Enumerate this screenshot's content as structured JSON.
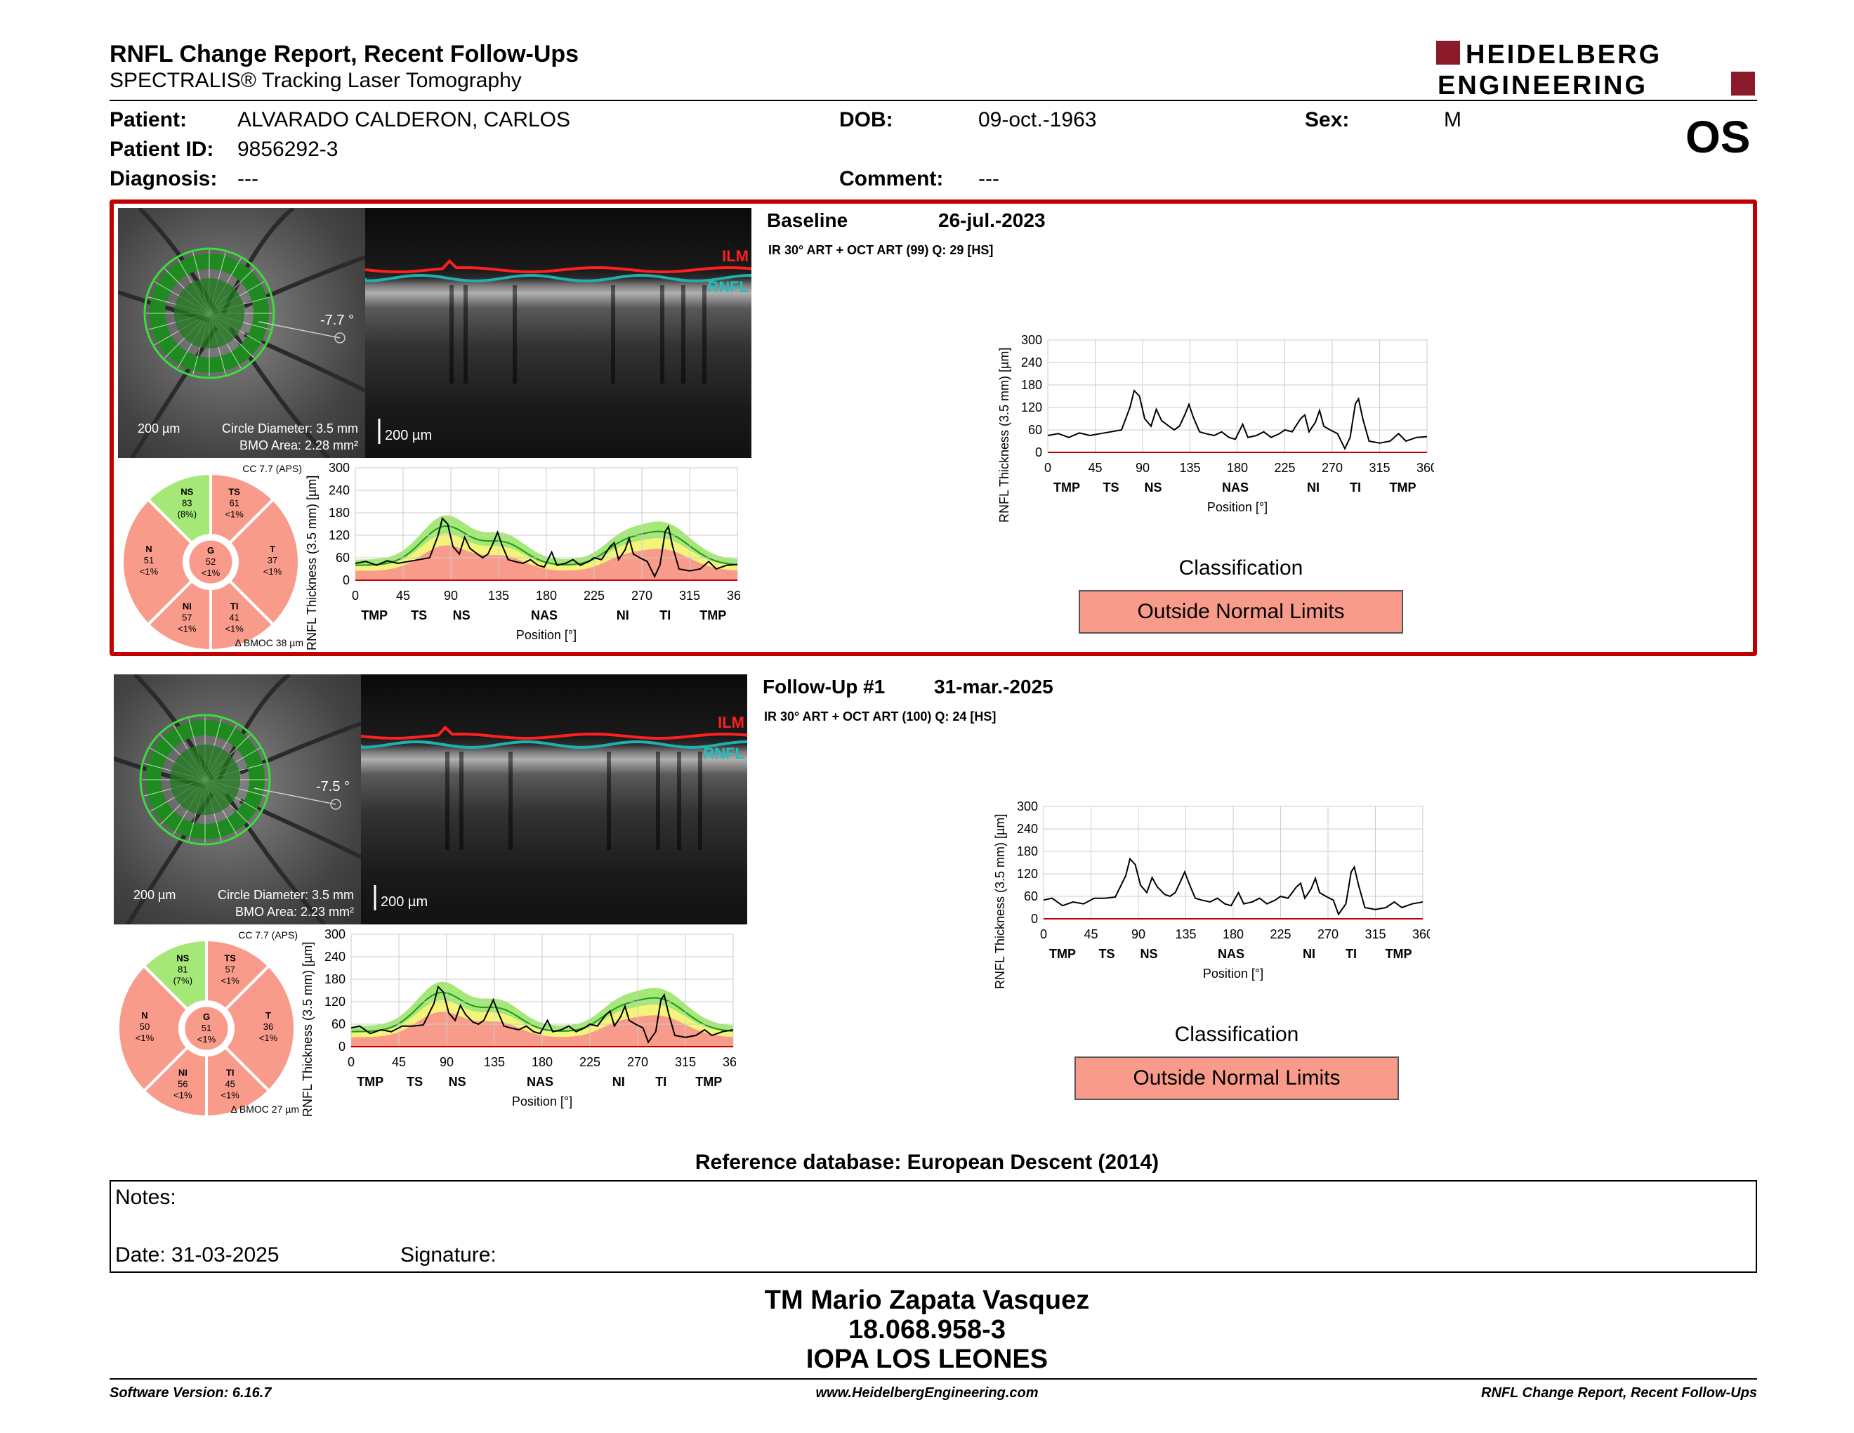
{
  "header": {
    "title": "RNFL Change Report, Recent Follow-Ups",
    "subtitle": "SPECTRALIS® Tracking Laser Tomography",
    "logo_line1": "HEIDELBERG",
    "logo_line2": "ENGINEERING"
  },
  "patient": {
    "patient_label": "Patient:",
    "patient_name": "ALVARADO CALDERON, CARLOS",
    "dob_label": "DOB:",
    "dob": "09-oct.-1963",
    "sex_label": "Sex:",
    "sex": "M",
    "id_label": "Patient ID:",
    "id": "9856292-3",
    "diagnosis_label": "Diagnosis:",
    "diagnosis": "---",
    "comment_label": "Comment:",
    "comment": "---",
    "eye": "OS"
  },
  "colors": {
    "red": "#c00000",
    "normal_green": "#a6e878",
    "borderline_yellow": "#f4f47a",
    "outside_red": "#f99b8b",
    "ilm": "#ff2020",
    "rnfl": "#20b0b0"
  },
  "exams": [
    {
      "name": "Baseline",
      "date": "26-jul.-2023",
      "scan": "IR 30° ART + OCT ART (99) Q: 29 [HS]",
      "angle": "-7.7 °",
      "fundus_scale": "200 µm",
      "circle_diameter": "Circle Diameter: 3.5 mm",
      "bmo_area": "BMO Area: 2.28 mm²",
      "oct_scale": "200 µm",
      "ilm": "ILM",
      "rnfl": "RNFL",
      "cc": "CC 7.7 (APS)",
      "bmoc": "Δ BMOC 38 µm",
      "sectors": {
        "NS": {
          "v": "83",
          "p": "(8%)",
          "c": "green"
        },
        "TS": {
          "v": "61",
          "p": "<1%",
          "c": "red"
        },
        "T": {
          "v": "37",
          "p": "<1%",
          "c": "red"
        },
        "TI": {
          "v": "41",
          "p": "<1%",
          "c": "red"
        },
        "NI": {
          "v": "57",
          "p": "<1%",
          "c": "red"
        },
        "N": {
          "v": "51",
          "p": "<1%",
          "c": "red"
        },
        "G": {
          "v": "52",
          "p": "<1%",
          "c": "red"
        }
      },
      "classification_label": "Classification",
      "classification": "Outside Normal Limits"
    },
    {
      "name": "Follow-Up #1",
      "date": "31-mar.-2025",
      "scan": "IR 30° ART + OCT ART (100) Q: 24 [HS]",
      "angle": "-7.5 °",
      "fundus_scale": "200 µm",
      "circle_diameter": "Circle Diameter: 3.5 mm",
      "bmo_area": "BMO Area: 2.23 mm²",
      "oct_scale": "200 µm",
      "ilm": "ILM",
      "rnfl": "RNFL",
      "cc": "CC 7.7 (APS)",
      "bmoc": "Δ BMOC 27 µm",
      "sectors": {
        "NS": {
          "v": "81",
          "p": "(7%)",
          "c": "green"
        },
        "TS": {
          "v": "57",
          "p": "<1%",
          "c": "red"
        },
        "T": {
          "v": "36",
          "p": "<1%",
          "c": "red"
        },
        "TI": {
          "v": "45",
          "p": "<1%",
          "c": "red"
        },
        "NI": {
          "v": "56",
          "p": "<1%",
          "c": "red"
        },
        "N": {
          "v": "50",
          "p": "<1%",
          "c": "red"
        },
        "G": {
          "v": "51",
          "p": "<1%",
          "c": "red"
        }
      },
      "classification_label": "Classification",
      "classification": "Outside Normal Limits"
    }
  ],
  "chart_data": [
    {
      "type": "line",
      "title": "",
      "ylabel": "RNFL Thickness (3.5 mm) [µm]",
      "xlabel": "Position [°]",
      "ylim": [
        0,
        300
      ],
      "xlim": [
        0,
        360
      ],
      "yticks": [
        0,
        60,
        120,
        180,
        240,
        300
      ],
      "xticks": [
        0,
        45,
        90,
        135,
        180,
        225,
        270,
        315,
        360
      ],
      "sector_labels": [
        {
          "x": 18,
          "t": "TMP"
        },
        {
          "x": 60,
          "t": "TS"
        },
        {
          "x": 100,
          "t": "NS"
        },
        {
          "x": 178,
          "t": "NAS"
        },
        {
          "x": 252,
          "t": "NI"
        },
        {
          "x": 292,
          "t": "TI"
        },
        {
          "x": 337,
          "t": "TMP"
        }
      ],
      "series": [
        {
          "values": [
            [
              0,
              45
            ],
            [
              10,
              50
            ],
            [
              20,
              40
            ],
            [
              30,
              52
            ],
            [
              40,
              45
            ],
            [
              50,
              50
            ],
            [
              60,
              55
            ],
            [
              70,
              60
            ],
            [
              78,
              120
            ],
            [
              82,
              165
            ],
            [
              87,
              150
            ],
            [
              92,
              90
            ],
            [
              98,
              70
            ],
            [
              103,
              115
            ],
            [
              108,
              85
            ],
            [
              115,
              70
            ],
            [
              120,
              60
            ],
            [
              125,
              70
            ],
            [
              130,
              100
            ],
            [
              134,
              128
            ],
            [
              138,
              95
            ],
            [
              144,
              55
            ],
            [
              150,
              50
            ],
            [
              158,
              45
            ],
            [
              165,
              55
            ],
            [
              172,
              40
            ],
            [
              178,
              35
            ],
            [
              185,
              75
            ],
            [
              190,
              40
            ],
            [
              198,
              45
            ],
            [
              205,
              55
            ],
            [
              212,
              40
            ],
            [
              220,
              50
            ],
            [
              225,
              60
            ],
            [
              232,
              55
            ],
            [
              240,
              90
            ],
            [
              244,
              100
            ],
            [
              248,
              55
            ],
            [
              254,
              80
            ],
            [
              258,
              112
            ],
            [
              262,
              70
            ],
            [
              268,
              60
            ],
            [
              275,
              50
            ],
            [
              282,
              10
            ],
            [
              287,
              40
            ],
            [
              292,
              130
            ],
            [
              295,
              143
            ],
            [
              299,
              90
            ],
            [
              305,
              30
            ],
            [
              315,
              25
            ],
            [
              325,
              30
            ],
            [
              333,
              50
            ],
            [
              340,
              30
            ],
            [
              350,
              40
            ],
            [
              360,
              42
            ]
          ]
        }
      ]
    },
    {
      "type": "line",
      "title": "",
      "ylabel": "RNFL Thickness (3.5 mm) [µm]",
      "xlabel": "Position [°]",
      "ylim": [
        0,
        300
      ],
      "xlim": [
        0,
        360
      ],
      "yticks": [
        0,
        60,
        120,
        180,
        240,
        300
      ],
      "xticks": [
        0,
        45,
        90,
        135,
        180,
        225,
        270,
        315,
        360
      ],
      "sector_labels": [
        {
          "x": 18,
          "t": "TMP"
        },
        {
          "x": 60,
          "t": "TS"
        },
        {
          "x": 100,
          "t": "NS"
        },
        {
          "x": 178,
          "t": "NAS"
        },
        {
          "x": 252,
          "t": "NI"
        },
        {
          "x": 292,
          "t": "TI"
        },
        {
          "x": 337,
          "t": "TMP"
        }
      ],
      "series": [
        {
          "values": [
            [
              0,
              50
            ],
            [
              8,
              55
            ],
            [
              18,
              35
            ],
            [
              28,
              45
            ],
            [
              38,
              40
            ],
            [
              48,
              55
            ],
            [
              58,
              55
            ],
            [
              68,
              58
            ],
            [
              78,
              115
            ],
            [
              82,
              160
            ],
            [
              87,
              145
            ],
            [
              92,
              90
            ],
            [
              98,
              70
            ],
            [
              103,
              110
            ],
            [
              108,
              85
            ],
            [
              115,
              65
            ],
            [
              120,
              60
            ],
            [
              125,
              70
            ],
            [
              130,
              100
            ],
            [
              134,
              125
            ],
            [
              138,
              95
            ],
            [
              144,
              55
            ],
            [
              150,
              50
            ],
            [
              158,
              45
            ],
            [
              165,
              55
            ],
            [
              172,
              40
            ],
            [
              178,
              35
            ],
            [
              185,
              70
            ],
            [
              190,
              40
            ],
            [
              198,
              45
            ],
            [
              205,
              55
            ],
            [
              212,
              40
            ],
            [
              220,
              50
            ],
            [
              225,
              60
            ],
            [
              232,
              55
            ],
            [
              240,
              85
            ],
            [
              244,
              95
            ],
            [
              248,
              55
            ],
            [
              254,
              80
            ],
            [
              258,
              108
            ],
            [
              262,
              70
            ],
            [
              268,
              60
            ],
            [
              275,
              50
            ],
            [
              280,
              12
            ],
            [
              287,
              40
            ],
            [
              292,
              125
            ],
            [
              295,
              138
            ],
            [
              299,
              90
            ],
            [
              305,
              30
            ],
            [
              315,
              25
            ],
            [
              325,
              30
            ],
            [
              333,
              45
            ],
            [
              340,
              30
            ],
            [
              350,
              40
            ],
            [
              360,
              45
            ]
          ]
        }
      ]
    }
  ],
  "reference_db": "Reference database: European Descent (2014)",
  "notes": {
    "notes_label": "Notes:",
    "date_label": "Date: 31-03-2025",
    "signature_label": "Signature:"
  },
  "signature": {
    "name": "TM Mario Zapata Vasquez",
    "id": "18.068.958-3",
    "org": "IOPA LOS LEONES"
  },
  "footer": {
    "left": "Software Version: 6.16.7",
    "center": "www.HeidelbergEngineering.com",
    "right": "RNFL Change Report, Recent Follow-Ups"
  }
}
